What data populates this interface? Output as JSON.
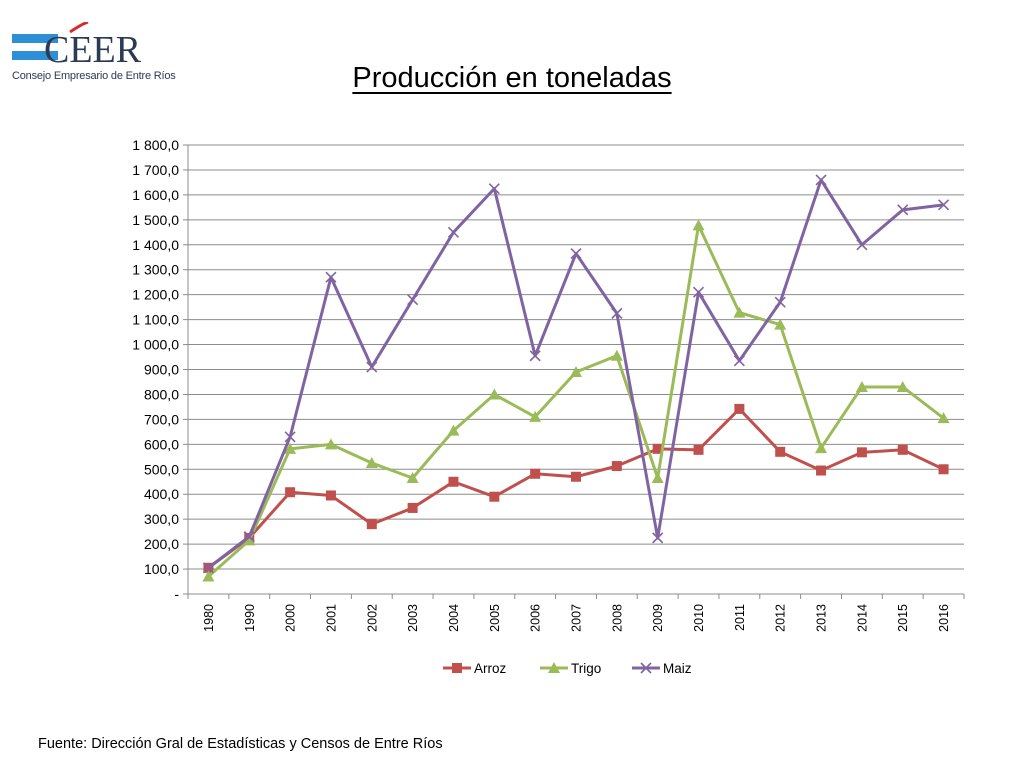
{
  "logo": {
    "brand": "CEER",
    "tagline": "Consejo Empresario de Entre Ríos",
    "colors": {
      "blue": "#2d8fd6",
      "red": "#d52b2b",
      "navy": "#2b3a55"
    }
  },
  "footer": {
    "source": "Fuente: Dirección Gral de Estadísticas y Censos de Entre Ríos"
  },
  "chart_data": {
    "type": "line",
    "title": "Producción en toneladas",
    "xlabel": "",
    "ylabel": "",
    "ylim": [
      0,
      1800
    ],
    "y_ticks": [
      {
        "value": 0,
        "label": "-"
      },
      {
        "value": 100,
        "label": "100,0"
      },
      {
        "value": 200,
        "label": "200,0"
      },
      {
        "value": 300,
        "label": "300,0"
      },
      {
        "value": 400,
        "label": "400,0"
      },
      {
        "value": 500,
        "label": "500,0"
      },
      {
        "value": 600,
        "label": "600,0"
      },
      {
        "value": 700,
        "label": "700,0"
      },
      {
        "value": 800,
        "label": "800,0"
      },
      {
        "value": 900,
        "label": "900,0"
      },
      {
        "value": 1000,
        "label": "1 000,0"
      },
      {
        "value": 1100,
        "label": "1 100,0"
      },
      {
        "value": 1200,
        "label": "1 200,0"
      },
      {
        "value": 1300,
        "label": "1 300,0"
      },
      {
        "value": 1400,
        "label": "1 400,0"
      },
      {
        "value": 1500,
        "label": "1 500,0"
      },
      {
        "value": 1600,
        "label": "1 600,0"
      },
      {
        "value": 1700,
        "label": "1 700,0"
      },
      {
        "value": 1800,
        "label": "1 800,0"
      }
    ],
    "grid": true,
    "legend_position": "bottom",
    "categories": [
      "1980",
      "1990",
      "2000",
      "2001",
      "2002",
      "2003",
      "2004",
      "2005",
      "2006",
      "2007",
      "2008",
      "2009",
      "2010",
      "2011",
      "2012",
      "2013",
      "2014",
      "2015",
      "2016"
    ],
    "series": [
      {
        "name": "Arroz",
        "color": "#c0504d",
        "marker": "square",
        "values": [
          105,
          225,
          408,
          395,
          280,
          345,
          450,
          390,
          482,
          470,
          513,
          582,
          578,
          742,
          570,
          495,
          568,
          578,
          500
        ]
      },
      {
        "name": "Trigo",
        "color": "#9bbb59",
        "marker": "triangle",
        "values": [
          70,
          215,
          582,
          600,
          525,
          465,
          655,
          800,
          710,
          890,
          955,
          465,
          1478,
          1128,
          1080,
          585,
          830,
          830,
          705
        ]
      },
      {
        "name": "Maiz",
        "color": "#8064a2",
        "marker": "x",
        "values": [
          105,
          230,
          630,
          1270,
          910,
          1180,
          1450,
          1625,
          955,
          1365,
          1125,
          225,
          1210,
          935,
          1170,
          1660,
          1400,
          1540,
          1560
        ]
      }
    ]
  }
}
